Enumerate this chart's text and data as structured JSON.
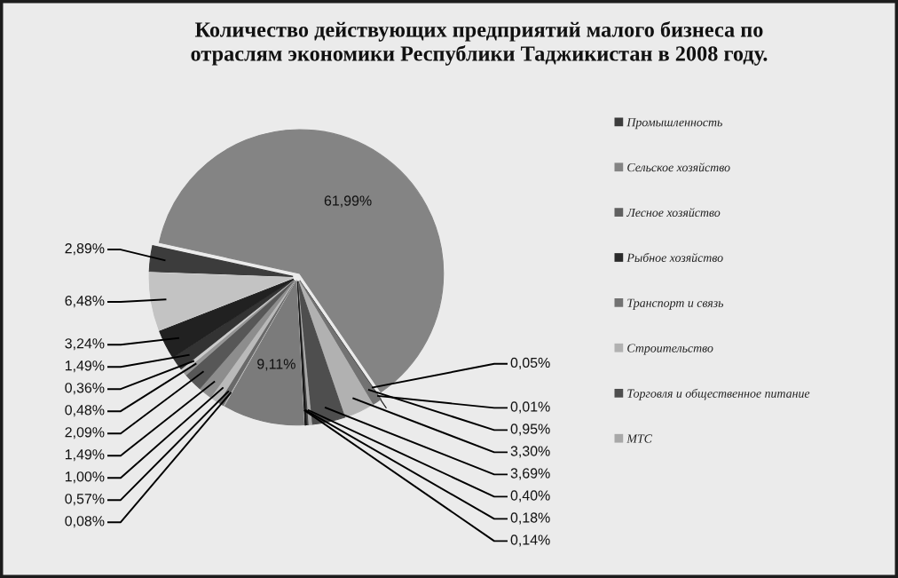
{
  "chart_data": {
    "type": "pie",
    "title": "Количество действующих предприятий малого бизнеса по отраслям экономики Республики Таджикистан в 2008 году.",
    "categories": [
      "Промышленность",
      "Сельское хозяйство",
      "Лесное хозяйство",
      "Рыбное хозяйство",
      "Транспорт и связь",
      "Строительство",
      "Торговля и общественное питание",
      "МТС",
      null,
      null,
      null,
      null,
      null,
      null,
      null,
      null,
      null,
      null,
      null,
      null,
      null
    ],
    "values": [
      2.89,
      61.99,
      0.05,
      0.01,
      0.95,
      3.3,
      3.69,
      0.4,
      0.18,
      0.14,
      9.11,
      0.08,
      0.57,
      1.0,
      1.49,
      2.09,
      0.48,
      0.36,
      1.49,
      3.24,
      6.48
    ],
    "value_labels": [
      "2,89%",
      "61,99%",
      "0,05%",
      "0,01%",
      "0,95%",
      "3,30%",
      "3,69%",
      "0,40%",
      "0,18%",
      "0,14%",
      "9,11%",
      "0,08%",
      "0,57%",
      "1,00%",
      "1,49%",
      "2,09%",
      "0,48%",
      "0,36%",
      "1,49%",
      "3,24%",
      "6,48%"
    ],
    "colors": [
      "#3c3c3c",
      "#848484",
      "#606060",
      "#2a2a2a",
      "#727272",
      "#b1b1b1",
      "#4e4e4e",
      "#a8a8a8",
      "#454545",
      "#181818",
      "#7b7b7b",
      "#9f9f9f",
      "#696969",
      "#bababa",
      "#8d8d8d",
      "#575757",
      "#969696",
      "#cccccc",
      "#333333",
      "#212121",
      "#c3c3c3"
    ],
    "legend": "right"
  }
}
